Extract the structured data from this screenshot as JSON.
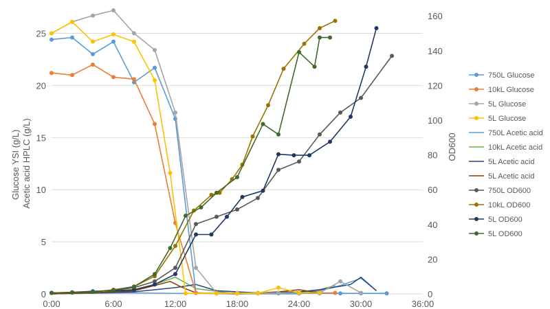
{
  "chart_data": {
    "type": "line",
    "title": "",
    "xlabel": "",
    "ylabel_left_lines": [
      "Glucose YSI (g/L)",
      "Acetic acid HPLC (g/L)"
    ],
    "ylabel_right": "OD600",
    "x_unit": "hours",
    "xlim": [
      0,
      36
    ],
    "ylim_left": [
      0,
      28
    ],
    "ylim_right": [
      0,
      168
    ],
    "x_ticks": [
      {
        "value": 0,
        "label": "0:00"
      },
      {
        "value": 6,
        "label": "6:00"
      },
      {
        "value": 12,
        "label": "12:00"
      },
      {
        "value": 18,
        "label": "18:00"
      },
      {
        "value": 24,
        "label": "24:00"
      },
      {
        "value": 30,
        "label": "30:00"
      },
      {
        "value": 36,
        "label": "36:00"
      }
    ],
    "y_left_ticks": [
      0,
      5,
      10,
      15,
      20,
      25
    ],
    "y_right_ticks": [
      0,
      20,
      40,
      60,
      80,
      100,
      120,
      140,
      160
    ],
    "grid": "horizontal",
    "legend_position": "right",
    "series": [
      {
        "name": "750L Glucose",
        "axis": "left",
        "color": "#5b9bd5",
        "markers": true,
        "points": [
          [
            0,
            24.4
          ],
          [
            2,
            24.6
          ],
          [
            4,
            23.0
          ],
          [
            6,
            24.2
          ],
          [
            8,
            20.3
          ],
          [
            10,
            21.7
          ],
          [
            12,
            16.8
          ],
          [
            14,
            0.1
          ],
          [
            16,
            0.05
          ],
          [
            18,
            0.05
          ],
          [
            20,
            0.05
          ],
          [
            22,
            0.05
          ],
          [
            24,
            0.05
          ],
          [
            26,
            0.05
          ],
          [
            28,
            0.05
          ],
          [
            30,
            0.05
          ],
          [
            32.5,
            0.05
          ]
        ]
      },
      {
        "name": "10kL Glucose",
        "axis": "left",
        "color": "#ed7d31",
        "markers": true,
        "points": [
          [
            0,
            21.2
          ],
          [
            2,
            21.0
          ],
          [
            4,
            22.0
          ],
          [
            6,
            20.8
          ],
          [
            8,
            20.6
          ],
          [
            10,
            16.3
          ],
          [
            12,
            6.8
          ],
          [
            14,
            0.1
          ],
          [
            16,
            0.05
          ],
          [
            18,
            0.05
          ],
          [
            20,
            0.05
          ],
          [
            22,
            0.1
          ],
          [
            24,
            0.1
          ],
          [
            26,
            0.1
          ],
          [
            27.5,
            0.1
          ]
        ]
      },
      {
        "name": "5L Glucose",
        "axis": "left",
        "color": "#a5a5a5",
        "markers": true,
        "points": [
          [
            0,
            25.0
          ],
          [
            2,
            26.1
          ],
          [
            4,
            26.7
          ],
          [
            6,
            27.2
          ],
          [
            8,
            25.0
          ],
          [
            10,
            23.4
          ],
          [
            12,
            17.4
          ],
          [
            14,
            2.5
          ],
          [
            16,
            0.1
          ],
          [
            18,
            0.1
          ],
          [
            20,
            0.1
          ],
          [
            22,
            0.1
          ],
          [
            24,
            0.1
          ],
          [
            26,
            0.1
          ],
          [
            28,
            1.2
          ],
          [
            30,
            0.1
          ]
        ]
      },
      {
        "name": "5L Glucose",
        "axis": "left",
        "color": "#ffc000",
        "markers": true,
        "points": [
          [
            0,
            25.0
          ],
          [
            2,
            26.1
          ],
          [
            4,
            24.2
          ],
          [
            6,
            24.9
          ],
          [
            8,
            24.2
          ],
          [
            10,
            20.5
          ],
          [
            11.5,
            11.6
          ],
          [
            13,
            0.05
          ],
          [
            16,
            0.05
          ],
          [
            18,
            0.05
          ],
          [
            20,
            0.05
          ],
          [
            22,
            0.6
          ],
          [
            24,
            0.1
          ],
          [
            26,
            0.1
          ]
        ]
      },
      {
        "name": "750L Acetic acid",
        "axis": "left",
        "color": "#5b9bd5",
        "markers": false,
        "points": [
          [
            0,
            0
          ],
          [
            4,
            0.05
          ],
          [
            8,
            0.1
          ],
          [
            12,
            0.05
          ],
          [
            14,
            0.05
          ],
          [
            20,
            0
          ],
          [
            24,
            0
          ],
          [
            26,
            0.3
          ],
          [
            28,
            0.8
          ],
          [
            30,
            1.5
          ],
          [
            31.5,
            0.3
          ]
        ]
      },
      {
        "name": "10kL Acetic acid",
        "axis": "left",
        "color": "#70ad47",
        "markers": false,
        "points": [
          [
            0,
            0
          ],
          [
            4,
            0.1
          ],
          [
            8,
            0.3
          ],
          [
            10,
            0.9
          ],
          [
            12,
            1.6
          ],
          [
            14,
            0.5
          ],
          [
            18,
            0
          ],
          [
            24,
            0.1
          ],
          [
            26,
            0.4
          ],
          [
            27.5,
            0.8
          ]
        ]
      },
      {
        "name": "5L Acetic acid",
        "axis": "left",
        "color": "#264478",
        "markers": false,
        "points": [
          [
            0,
            0
          ],
          [
            4,
            0.1
          ],
          [
            8,
            0.2
          ],
          [
            12,
            0.6
          ],
          [
            14,
            0.9
          ],
          [
            16,
            0.3
          ],
          [
            20,
            0.1
          ],
          [
            24,
            0.2
          ],
          [
            26,
            0.4
          ],
          [
            29,
            0.9
          ],
          [
            30,
            1.6
          ],
          [
            31.5,
            0.3
          ]
        ]
      },
      {
        "name": "5L Acetic acid",
        "axis": "left",
        "color": "#843c0c",
        "markers": false,
        "points": [
          [
            0,
            0
          ],
          [
            4,
            0.1
          ],
          [
            8,
            0.3
          ],
          [
            10,
            0.8
          ],
          [
            11.5,
            1.2
          ],
          [
            12.5,
            0.7
          ],
          [
            14,
            0.1
          ],
          [
            18,
            0
          ],
          [
            22,
            0.2
          ],
          [
            24,
            0.4
          ],
          [
            26,
            0.1
          ]
        ]
      },
      {
        "name": "750L OD600",
        "axis": "right",
        "color": "#595959",
        "markers": true,
        "points": [
          [
            0,
            0.6
          ],
          [
            2,
            0.8
          ],
          [
            4,
            1.2
          ],
          [
            6,
            2.1
          ],
          [
            8,
            3.6
          ],
          [
            10,
            7.2
          ],
          [
            12,
            15
          ],
          [
            14,
            40.2
          ],
          [
            16,
            44.4
          ],
          [
            18,
            48.6
          ],
          [
            20,
            55.2
          ],
          [
            22,
            71.4
          ],
          [
            24,
            76.2
          ],
          [
            26,
            91.8
          ],
          [
            28,
            104.4
          ],
          [
            30,
            112.8
          ],
          [
            33,
            137
          ]
        ]
      },
      {
        "name": "10kL OD600",
        "axis": "right",
        "color": "#997300",
        "markers": true,
        "points": [
          [
            0,
            0.6
          ],
          [
            2,
            0.8
          ],
          [
            4,
            1.2
          ],
          [
            6,
            2.4
          ],
          [
            8,
            4.2
          ],
          [
            10,
            10.2
          ],
          [
            12,
            27.6
          ],
          [
            13.8,
            48
          ],
          [
            15.5,
            57
          ],
          [
            16.3,
            58.2
          ],
          [
            17.5,
            66
          ],
          [
            18.5,
            74.4
          ],
          [
            19.5,
            90.6
          ],
          [
            21,
            108.6
          ],
          [
            22.5,
            129.6
          ],
          [
            24.5,
            144
          ],
          [
            26,
            153
          ],
          [
            27.5,
            157.2
          ]
        ]
      },
      {
        "name": "5L OD600",
        "axis": "right",
        "color": "#203864",
        "markers": true,
        "points": [
          [
            0,
            0.6
          ],
          [
            2,
            0.9
          ],
          [
            4,
            1.5
          ],
          [
            6,
            1.8
          ],
          [
            8,
            2.4
          ],
          [
            10,
            5.4
          ],
          [
            12,
            11.4
          ],
          [
            14,
            34.2
          ],
          [
            15.5,
            34.2
          ],
          [
            17,
            44.4
          ],
          [
            18.5,
            55.8
          ],
          [
            20.5,
            59.4
          ],
          [
            22,
            80.4
          ],
          [
            23.5,
            79.8
          ],
          [
            25,
            79.8
          ],
          [
            27,
            87.6
          ],
          [
            29,
            102
          ],
          [
            30.5,
            130.8
          ],
          [
            31.5,
            153
          ]
        ]
      },
      {
        "name": "5L OD600",
        "axis": "right",
        "color": "#43682b",
        "markers": true,
        "points": [
          [
            0,
            0.6
          ],
          [
            2,
            0.8
          ],
          [
            4,
            1.2
          ],
          [
            6,
            2.1
          ],
          [
            8,
            4.2
          ],
          [
            10,
            11.4
          ],
          [
            11.5,
            26.4
          ],
          [
            13,
            45
          ],
          [
            14.5,
            49.8
          ],
          [
            16,
            58.2
          ],
          [
            18,
            67.2
          ],
          [
            20.5,
            97.8
          ],
          [
            22,
            91.8
          ],
          [
            24,
            139.2
          ],
          [
            25.5,
            130.8
          ],
          [
            26,
            147.6
          ],
          [
            27,
            147.6
          ]
        ]
      }
    ]
  }
}
